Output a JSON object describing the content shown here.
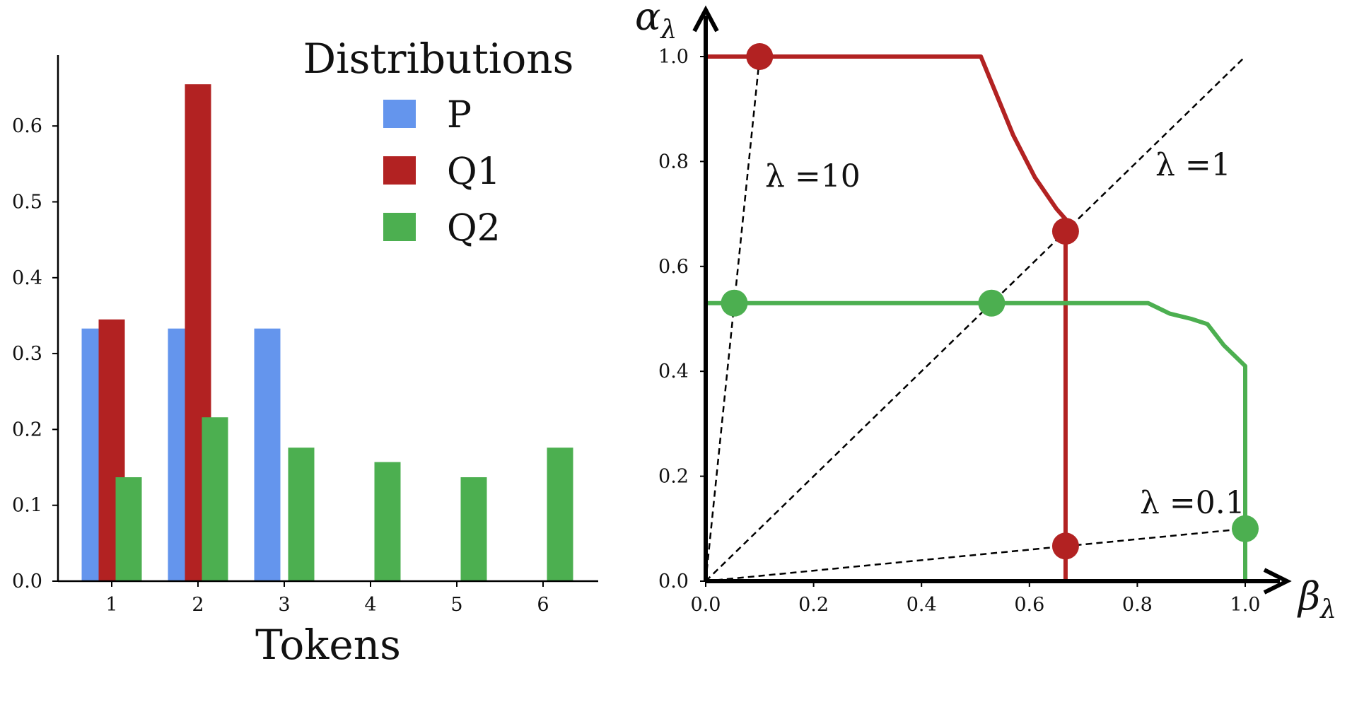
{
  "colors": {
    "P": "#6495ed",
    "Q1": "#b22222",
    "Q2": "#4caf50",
    "axis": "#000000",
    "guide": "#000000"
  },
  "chart_data": [
    {
      "type": "bar",
      "title": "",
      "xlabel": "Tokens",
      "ylabel": "",
      "ylim": [
        0,
        0.68
      ],
      "yticks": [
        "0.0",
        "0.1",
        "0.2",
        "0.3",
        "0.4",
        "0.5",
        "0.6"
      ],
      "categories": [
        "1",
        "2",
        "3",
        "4",
        "5",
        "6"
      ],
      "legend": {
        "title": "Distributions",
        "placement": "top-right"
      },
      "series": [
        {
          "name": "P",
          "values": [
            0.333,
            0.333,
            0.333,
            0,
            0,
            0
          ]
        },
        {
          "name": "Q1",
          "values": [
            0.345,
            0.655,
            0,
            0,
            0,
            0
          ]
        },
        {
          "name": "Q2",
          "values": [
            0.137,
            0.216,
            0.176,
            0.157,
            0.137,
            0.176
          ]
        }
      ]
    },
    {
      "type": "line",
      "title": "",
      "xlabel_symbol": "β",
      "xlabel_sub": "λ",
      "ylabel_symbol": "α",
      "ylabel_sub": "λ",
      "xlim": [
        0,
        1.05
      ],
      "ylim": [
        0,
        1.05
      ],
      "xticks": [
        "0.0",
        "0.2",
        "0.4",
        "0.6",
        "0.8",
        "1.0"
      ],
      "yticks": [
        "0.0",
        "0.2",
        "0.4",
        "0.6",
        "0.8",
        "1.0"
      ],
      "grid": false,
      "series": [
        {
          "name": "Q1",
          "x": [
            0,
            0.51,
            0.53,
            0.55,
            0.57,
            0.59,
            0.61,
            0.63,
            0.65,
            0.667,
            0.667
          ],
          "y": [
            1.0,
            1.0,
            0.95,
            0.9,
            0.85,
            0.81,
            0.77,
            0.74,
            0.71,
            0.69,
            0
          ]
        },
        {
          "name": "Q2",
          "x": [
            0,
            0.82,
            0.86,
            0.9,
            0.93,
            0.96,
            0.98,
            1.0,
            1.0
          ],
          "y": [
            0.53,
            0.53,
            0.51,
            0.5,
            0.49,
            0.45,
            0.43,
            0.41,
            0
          ]
        }
      ],
      "guides": [
        {
          "label": "λ =10",
          "slope": 10,
          "x_end": 0.1
        },
        {
          "label": "λ =1",
          "slope": 1,
          "x_end": 1.0
        },
        {
          "label": "λ =0.1",
          "slope": 0.1,
          "x_end": 1.0
        }
      ],
      "points": [
        {
          "series": "Q1",
          "x": 0.1,
          "y": 1.0
        },
        {
          "series": "Q1",
          "x": 0.667,
          "y": 0.667
        },
        {
          "series": "Q1",
          "x": 0.667,
          "y": 0.067
        },
        {
          "series": "Q2",
          "x": 0.053,
          "y": 0.53
        },
        {
          "series": "Q2",
          "x": 0.53,
          "y": 0.53
        },
        {
          "series": "Q2",
          "x": 1.0,
          "y": 0.1
        }
      ]
    }
  ]
}
